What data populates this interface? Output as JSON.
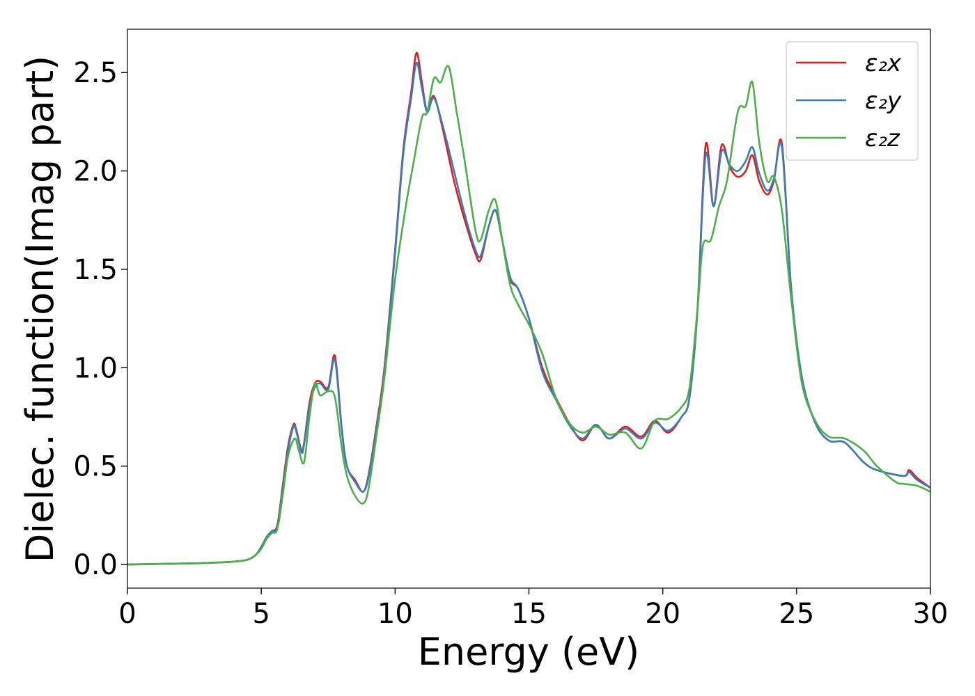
{
  "chart_data": {
    "type": "line",
    "title": "",
    "xlabel": "Energy (eV)",
    "ylabel": "Dielec. function(Imag part)",
    "xlim": [
      0,
      30
    ],
    "ylim": [
      -0.12,
      2.72
    ],
    "xticks": [
      0,
      5,
      10,
      15,
      20,
      25,
      30
    ],
    "xtick_labels": [
      "0",
      "5",
      "10",
      "15",
      "20",
      "25",
      "30"
    ],
    "yticks": [
      0.0,
      0.5,
      1.0,
      1.5,
      2.0,
      2.5
    ],
    "ytick_labels": [
      "0.0",
      "0.5",
      "1.0",
      "1.5",
      "2.0",
      "2.5"
    ],
    "grid": false,
    "legend_position": "top-right",
    "series": [
      {
        "name": "ε₂x",
        "color": "#e41a1c",
        "x": [
          0,
          2,
          3,
          4,
          4.5,
          4.8,
          5.0,
          5.2,
          5.4,
          5.6,
          5.8,
          6.0,
          6.2,
          6.3,
          6.5,
          6.6,
          6.8,
          7.0,
          7.2,
          7.5,
          7.75,
          8.0,
          8.2,
          8.5,
          8.8,
          9.0,
          9.3,
          9.6,
          10.0,
          10.3,
          10.6,
          10.8,
          11.0,
          11.2,
          11.45,
          11.8,
          12.2,
          12.6,
          13.0,
          13.2,
          13.5,
          13.75,
          14.0,
          14.3,
          14.6,
          15.0,
          15.5,
          16.0,
          16.5,
          17.0,
          17.5,
          18.0,
          18.6,
          19.2,
          19.7,
          20.2,
          20.7,
          21.0,
          21.3,
          21.6,
          21.9,
          22.2,
          22.5,
          22.8,
          23.1,
          23.35,
          23.6,
          23.9,
          24.15,
          24.45,
          24.8,
          25.2,
          25.7,
          26.2,
          26.8,
          27.5,
          28.0,
          29.0,
          29.2,
          29.5,
          30
        ],
        "y": [
          0.0,
          0.005,
          0.008,
          0.015,
          0.025,
          0.05,
          0.09,
          0.14,
          0.17,
          0.2,
          0.4,
          0.6,
          0.71,
          0.69,
          0.58,
          0.62,
          0.82,
          0.92,
          0.93,
          0.9,
          1.06,
          0.7,
          0.5,
          0.43,
          0.37,
          0.45,
          0.7,
          1.0,
          1.6,
          2.1,
          2.4,
          2.6,
          2.45,
          2.3,
          2.38,
          2.2,
          1.95,
          1.75,
          1.58,
          1.55,
          1.72,
          1.8,
          1.65,
          1.45,
          1.4,
          1.25,
          1.0,
          0.85,
          0.72,
          0.63,
          0.71,
          0.64,
          0.7,
          0.65,
          0.73,
          0.67,
          0.75,
          0.85,
          1.3,
          2.13,
          1.83,
          2.13,
          2.02,
          1.97,
          2.0,
          2.08,
          1.95,
          1.88,
          1.95,
          2.14,
          1.4,
          0.95,
          0.72,
          0.63,
          0.62,
          0.52,
          0.48,
          0.45,
          0.48,
          0.44,
          0.39
        ]
      },
      {
        "name": "ε₂y",
        "color": "#377eb8",
        "x": [
          0,
          2,
          3,
          4,
          4.5,
          4.8,
          5.0,
          5.2,
          5.4,
          5.6,
          5.8,
          6.0,
          6.2,
          6.3,
          6.5,
          6.6,
          6.8,
          7.0,
          7.2,
          7.5,
          7.75,
          8.0,
          8.2,
          8.5,
          8.8,
          9.0,
          9.3,
          9.6,
          10.0,
          10.3,
          10.6,
          10.8,
          11.0,
          11.2,
          11.45,
          11.8,
          12.2,
          12.6,
          13.0,
          13.2,
          13.5,
          13.75,
          14.0,
          14.3,
          14.6,
          15.0,
          15.5,
          16.0,
          16.5,
          17.0,
          17.5,
          18.0,
          18.6,
          19.2,
          19.7,
          20.2,
          20.7,
          21.0,
          21.3,
          21.6,
          21.9,
          22.2,
          22.5,
          22.8,
          23.1,
          23.35,
          23.6,
          23.9,
          24.15,
          24.45,
          24.8,
          25.2,
          25.7,
          26.2,
          26.8,
          27.5,
          28.0,
          29.0,
          29.2,
          29.5,
          30
        ],
        "y": [
          0.0,
          0.005,
          0.008,
          0.015,
          0.025,
          0.05,
          0.09,
          0.14,
          0.17,
          0.19,
          0.38,
          0.58,
          0.7,
          0.68,
          0.57,
          0.61,
          0.8,
          0.9,
          0.92,
          0.89,
          1.04,
          0.69,
          0.5,
          0.42,
          0.37,
          0.44,
          0.68,
          0.98,
          1.58,
          2.08,
          2.37,
          2.55,
          2.42,
          2.3,
          2.37,
          2.22,
          2.0,
          1.78,
          1.6,
          1.57,
          1.72,
          1.8,
          1.65,
          1.46,
          1.4,
          1.25,
          0.98,
          0.84,
          0.71,
          0.64,
          0.71,
          0.64,
          0.69,
          0.64,
          0.72,
          0.68,
          0.75,
          0.85,
          1.3,
          2.08,
          1.82,
          2.1,
          2.03,
          2.0,
          2.05,
          2.12,
          1.99,
          1.9,
          1.96,
          2.12,
          1.4,
          0.95,
          0.72,
          0.63,
          0.62,
          0.52,
          0.48,
          0.45,
          0.47,
          0.43,
          0.39
        ]
      },
      {
        "name": "ε₂z",
        "color": "#4daf4a",
        "x": [
          0,
          2,
          3,
          4,
          4.5,
          4.8,
          5.0,
          5.2,
          5.4,
          5.6,
          5.8,
          6.0,
          6.25,
          6.4,
          6.6,
          6.8,
          7.0,
          7.2,
          7.5,
          7.75,
          8.0,
          8.2,
          8.5,
          8.8,
          9.0,
          9.3,
          9.6,
          10.0,
          10.4,
          10.7,
          11.0,
          11.2,
          11.45,
          11.7,
          12.0,
          12.3,
          12.6,
          13.0,
          13.2,
          13.5,
          13.75,
          14.0,
          14.3,
          14.6,
          15.0,
          15.5,
          16.0,
          16.5,
          17.0,
          17.5,
          18.0,
          18.6,
          19.2,
          19.7,
          20.2,
          20.7,
          21.0,
          21.3,
          21.5,
          21.8,
          22.1,
          22.4,
          22.8,
          23.1,
          23.35,
          23.6,
          23.9,
          24.15,
          24.45,
          24.8,
          25.2,
          25.7,
          26.2,
          26.8,
          27.5,
          28.0,
          28.7,
          29.0,
          29.5,
          30
        ],
        "y": [
          0.0,
          0.005,
          0.008,
          0.015,
          0.025,
          0.05,
          0.08,
          0.13,
          0.16,
          0.18,
          0.35,
          0.55,
          0.64,
          0.58,
          0.52,
          0.75,
          0.92,
          0.86,
          0.88,
          0.85,
          0.6,
          0.45,
          0.35,
          0.31,
          0.38,
          0.65,
          0.95,
          1.45,
          1.82,
          2.05,
          2.27,
          2.3,
          2.47,
          2.45,
          2.53,
          2.3,
          2.05,
          1.7,
          1.65,
          1.8,
          1.85,
          1.65,
          1.42,
          1.32,
          1.22,
          1.07,
          0.85,
          0.72,
          0.67,
          0.7,
          0.66,
          0.67,
          0.59,
          0.73,
          0.74,
          0.8,
          0.9,
          1.3,
          1.62,
          1.65,
          1.82,
          1.95,
          2.3,
          2.33,
          2.45,
          2.15,
          1.95,
          1.97,
          1.8,
          1.35,
          0.92,
          0.73,
          0.65,
          0.64,
          0.58,
          0.5,
          0.42,
          0.41,
          0.4,
          0.37
        ]
      }
    ]
  }
}
